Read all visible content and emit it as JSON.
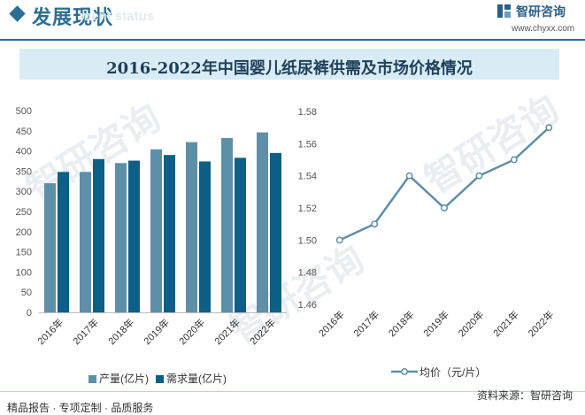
{
  "header": {
    "title": "发展现状",
    "subtitle": "ment status",
    "logo_name": "智研咨询",
    "logo_url": "www.chyxx.com"
  },
  "title": "2016-2022年中国婴儿纸尿裤供需及市场价格情况",
  "watermark_text": "智研咨询",
  "colors": {
    "production": "#5e8fa8",
    "demand": "#0e5f85",
    "price_line": "#5e8fa8",
    "accent": "#2b6f95"
  },
  "chart_data": [
    {
      "type": "bar",
      "categories": [
        "2016年",
        "2017年",
        "2018年",
        "2019年",
        "2020年",
        "2021年",
        "2022年"
      ],
      "ylim": [
        0,
        500
      ],
      "yticks": [
        "0",
        "50",
        "100",
        "150",
        "200",
        "250",
        "300",
        "350",
        "400",
        "450",
        "500"
      ],
      "series": [
        {
          "name": "产量(亿片)",
          "values": [
            320,
            348,
            370,
            404,
            422,
            432,
            446
          ]
        },
        {
          "name": "需求量(亿片)",
          "values": [
            348,
            380,
            376,
            390,
            374,
            383,
            395
          ]
        }
      ],
      "legend_position": "bottom"
    },
    {
      "type": "line",
      "categories": [
        "2016年",
        "2017年",
        "2018年",
        "2019年",
        "2020年",
        "2021年",
        "2022年"
      ],
      "ylim": [
        1.46,
        1.58
      ],
      "yticks": [
        "1.46",
        "1.48",
        "1.50",
        "1.52",
        "1.54",
        "1.56",
        "1.58"
      ],
      "series": [
        {
          "name": "均价（元/片）",
          "values": [
            1.5,
            1.51,
            1.54,
            1.52,
            1.54,
            1.55,
            1.57
          ]
        }
      ],
      "legend_position": "bottom"
    }
  ],
  "footer": {
    "left": "精品报告 · 专项定制 · 品质服务",
    "right": "资料来源：智研咨询"
  }
}
